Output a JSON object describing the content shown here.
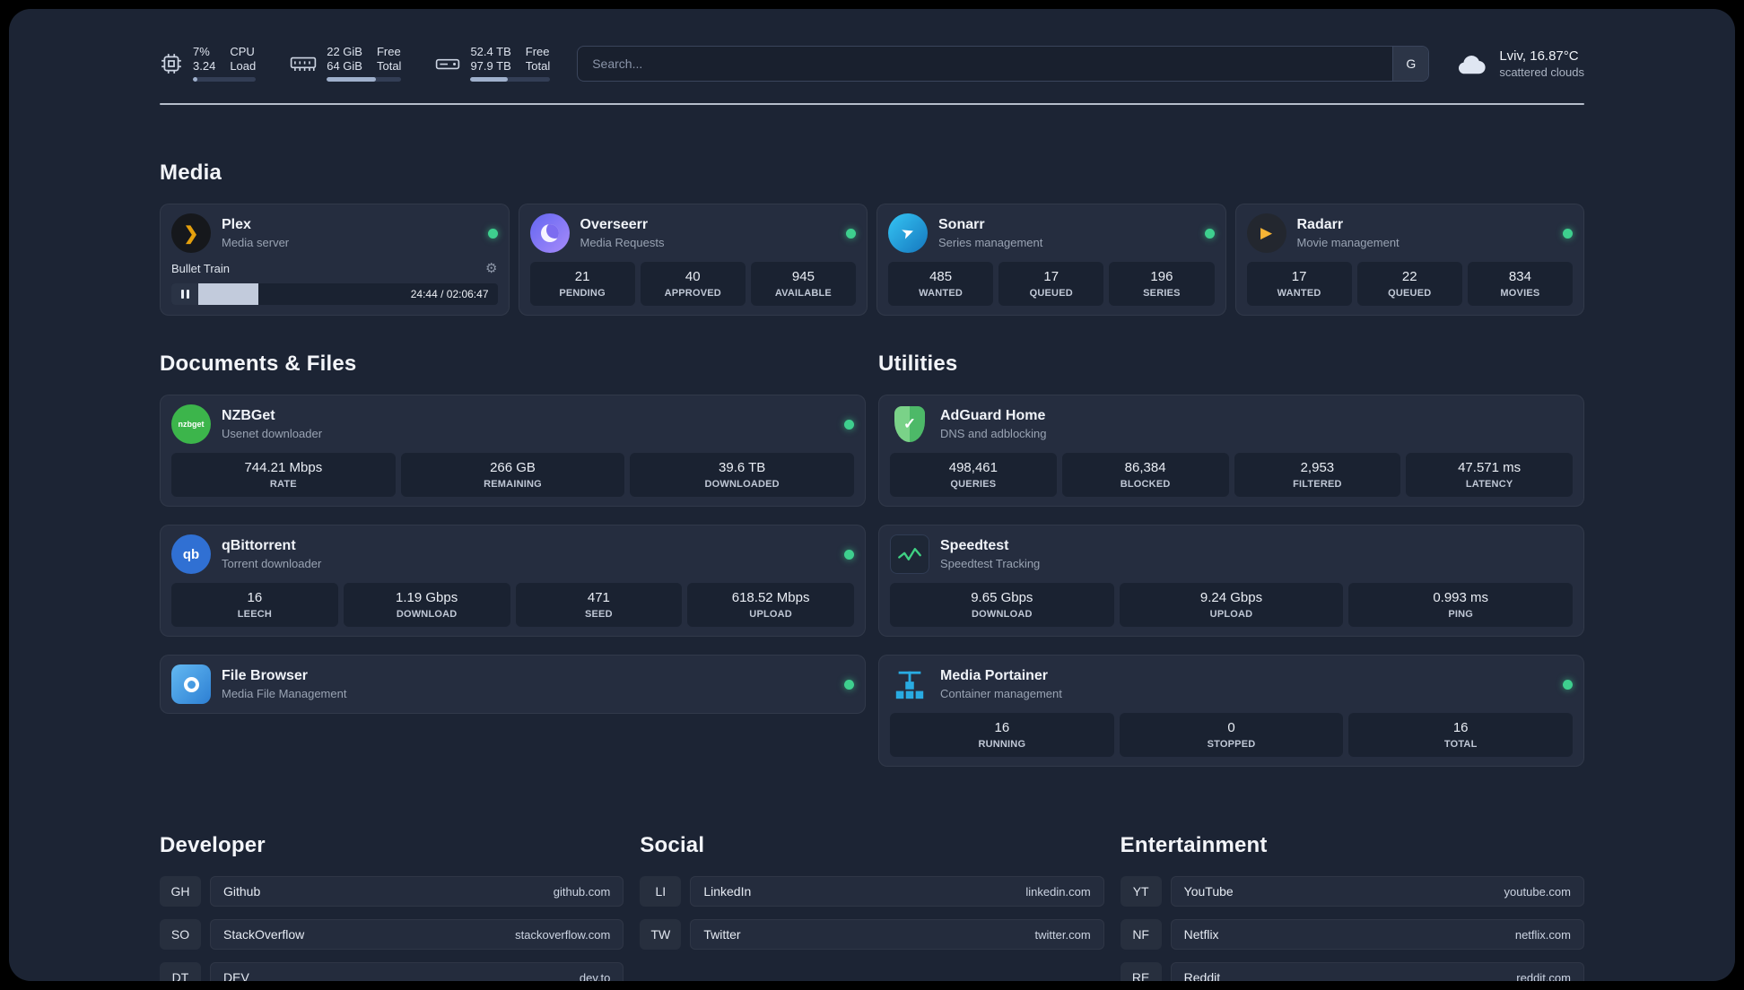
{
  "topbar": {
    "cpu": {
      "value1": "7%",
      "value2": "3.24",
      "label1": "CPU",
      "label2": "Load",
      "bar_pct": 7
    },
    "memory": {
      "value1": "22 GiB",
      "value2": "64 GiB",
      "label1": "Free",
      "label2": "Total",
      "bar_pct": 66
    },
    "disk": {
      "value1": "52.4 TB",
      "value2": "97.9 TB",
      "label1": "Free",
      "label2": "Total",
      "bar_pct": 47
    },
    "search": {
      "placeholder": "Search...",
      "button_label": "G"
    },
    "weather": {
      "location": "Lviv, 16.87°C",
      "condition": "scattered clouds"
    }
  },
  "icons": {
    "plex": "❯",
    "sonarr": "➤",
    "radarr": "▶",
    "nzbget": "nzbget",
    "qbittorrent": "qb",
    "adguard": "✓",
    "gear": "⚙"
  },
  "colors": {
    "accent_green": "#3ecf8e",
    "background": "#1c2434",
    "card": "#252d3f"
  },
  "sections": {
    "media": {
      "title": "Media",
      "cards": [
        {
          "name": "Plex",
          "subtitle": "Media server",
          "player": {
            "track": "Bullet Train",
            "time": "24:44 / 02:06:47",
            "progress_pct": 20
          }
        },
        {
          "name": "Overseerr",
          "subtitle": "Media Requests",
          "stats": [
            {
              "value": "21",
              "label": "PENDING"
            },
            {
              "value": "40",
              "label": "APPROVED"
            },
            {
              "value": "945",
              "label": "AVAILABLE"
            }
          ]
        },
        {
          "name": "Sonarr",
          "subtitle": "Series management",
          "stats": [
            {
              "value": "485",
              "label": "WANTED"
            },
            {
              "value": "17",
              "label": "QUEUED"
            },
            {
              "value": "196",
              "label": "SERIES"
            }
          ]
        },
        {
          "name": "Radarr",
          "subtitle": "Movie management",
          "stats": [
            {
              "value": "17",
              "label": "WANTED"
            },
            {
              "value": "22",
              "label": "QUEUED"
            },
            {
              "value": "834",
              "label": "MOVIES"
            }
          ]
        }
      ]
    },
    "documents": {
      "title": "Documents & Files",
      "cards": [
        {
          "name": "NZBGet",
          "subtitle": "Usenet downloader",
          "stats": [
            {
              "value": "744.21 Mbps",
              "label": "RATE"
            },
            {
              "value": "266 GB",
              "label": "REMAINING"
            },
            {
              "value": "39.6 TB",
              "label": "DOWNLOADED"
            }
          ]
        },
        {
          "name": "qBittorrent",
          "subtitle": "Torrent downloader",
          "stats": [
            {
              "value": "16",
              "label": "LEECH"
            },
            {
              "value": "1.19 Gbps",
              "label": "DOWNLOAD"
            },
            {
              "value": "471",
              "label": "SEED"
            },
            {
              "value": "618.52 Mbps",
              "label": "UPLOAD"
            }
          ]
        },
        {
          "name": "File Browser",
          "subtitle": "Media File Management"
        }
      ]
    },
    "utilities": {
      "title": "Utilities",
      "cards": [
        {
          "name": "AdGuard Home",
          "subtitle": "DNS and adblocking",
          "stats": [
            {
              "value": "498,461",
              "label": "QUERIES"
            },
            {
              "value": "86,384",
              "label": "BLOCKED"
            },
            {
              "value": "2,953",
              "label": "FILTERED"
            },
            {
              "value": "47.571 ms",
              "label": "LATENCY"
            }
          ]
        },
        {
          "name": "Speedtest",
          "subtitle": "Speedtest Tracking",
          "stats": [
            {
              "value": "9.65 Gbps",
              "label": "DOWNLOAD"
            },
            {
              "value": "9.24 Gbps",
              "label": "UPLOAD"
            },
            {
              "value": "0.993 ms",
              "label": "PING"
            }
          ]
        },
        {
          "name": "Media Portainer",
          "subtitle": "Container management",
          "stats": [
            {
              "value": "16",
              "label": "RUNNING"
            },
            {
              "value": "0",
              "label": "STOPPED"
            },
            {
              "value": "16",
              "label": "TOTAL"
            }
          ]
        }
      ]
    },
    "developer": {
      "title": "Developer",
      "links": [
        {
          "abbr": "GH",
          "name": "Github",
          "url": "github.com"
        },
        {
          "abbr": "SO",
          "name": "StackOverflow",
          "url": "stackoverflow.com"
        },
        {
          "abbr": "DT",
          "name": "DEV",
          "url": "dev.to"
        }
      ]
    },
    "social": {
      "title": "Social",
      "links": [
        {
          "abbr": "LI",
          "name": "LinkedIn",
          "url": "linkedin.com"
        },
        {
          "abbr": "TW",
          "name": "Twitter",
          "url": "twitter.com"
        }
      ]
    },
    "entertainment": {
      "title": "Entertainment",
      "links": [
        {
          "abbr": "YT",
          "name": "YouTube",
          "url": "youtube.com"
        },
        {
          "abbr": "NF",
          "name": "Netflix",
          "url": "netflix.com"
        },
        {
          "abbr": "RE",
          "name": "Reddit",
          "url": "reddit.com"
        }
      ]
    }
  }
}
